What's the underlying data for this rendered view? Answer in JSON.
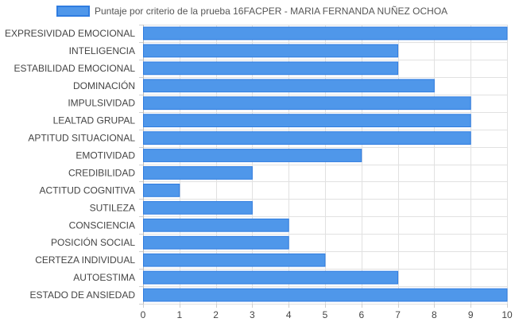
{
  "chart_data": {
    "type": "bar",
    "orientation": "horizontal",
    "legend": {
      "label": "Puntaje por criterio de la prueba 16FACPER - MARIA FERNANDA NUÑEZ OCHOA",
      "position": "top"
    },
    "categories": [
      "EXPRESIVIDAD EMOCIONAL",
      "INTELIGENCIA",
      "ESTABILIDAD EMOCIONAL",
      "DOMINACIÓN",
      "IMPULSIVIDAD",
      "LEALTAD GRUPAL",
      "APTITUD SITUACIONAL",
      "EMOTIVIDAD",
      "CREDIBILIDAD",
      "ACTITUD COGNITIVA",
      "SUTILEZA",
      "CONSCIENCIA",
      "POSICIÓN SOCIAL",
      "CERTEZA INDIVIDUAL",
      "AUTOESTIMA",
      "ESTADO DE ANSIEDAD"
    ],
    "series": [
      {
        "name": "Puntaje por criterio de la prueba 16FACPER - MARIA FERNANDA NUÑEZ OCHOA",
        "values": [
          10,
          7,
          7,
          8,
          9,
          9,
          9,
          6,
          3,
          1,
          3,
          4,
          4,
          5,
          7,
          10
        ]
      }
    ],
    "xlim": [
      0,
      10
    ],
    "x_ticks": [
      "0",
      "1",
      "2",
      "3",
      "4",
      "5",
      "6",
      "7",
      "8",
      "9",
      "10"
    ],
    "grid": true,
    "colors": {
      "fill": "#4f97ea",
      "stroke": "#2f7ce0",
      "grid": "#e1e1e1"
    }
  }
}
